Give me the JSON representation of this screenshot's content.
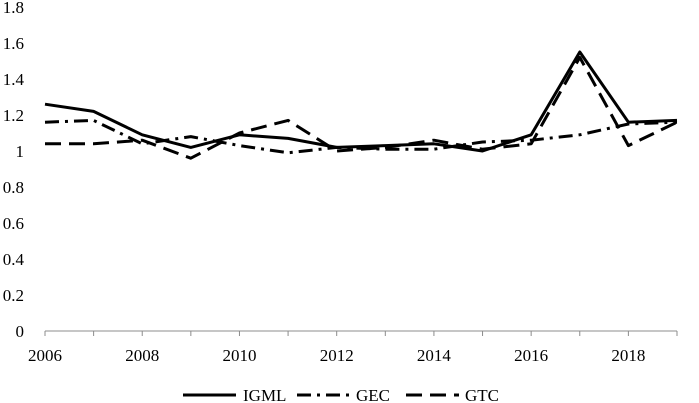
{
  "chart_data": {
    "type": "line",
    "title": "",
    "xlabel": "",
    "ylabel": "",
    "x": [
      2006,
      2007,
      2008,
      2009,
      2010,
      2011,
      2012,
      2013,
      2014,
      2015,
      2016,
      2017,
      2018,
      2019
    ],
    "x_tick_labels": [
      "2006",
      "2008",
      "2010",
      "2012",
      "2014",
      "2016",
      "2018"
    ],
    "y_tick_labels": [
      "0",
      "0.2",
      "0.4",
      "0.6",
      "0.8",
      "1",
      "1.2",
      "1.4",
      "1.6",
      "1.8"
    ],
    "xlim": [
      2006,
      2019
    ],
    "ylim": [
      0,
      1.8
    ],
    "grid": false,
    "legend_position": "bottom",
    "series": [
      {
        "name": "IGML",
        "style": "solid",
        "color": "#000000",
        "values": [
          1.26,
          1.22,
          1.09,
          1.02,
          1.09,
          1.07,
          1.02,
          1.03,
          1.04,
          1.0,
          1.09,
          1.55,
          1.16,
          1.17
        ]
      },
      {
        "name": "GEC",
        "style": "dash-dot",
        "color": "#000000",
        "values": [
          1.16,
          1.17,
          1.04,
          1.08,
          1.03,
          0.99,
          1.02,
          1.01,
          1.01,
          1.05,
          1.06,
          1.09,
          1.15,
          1.16
        ]
      },
      {
        "name": "GTC",
        "style": "dashed",
        "color": "#000000",
        "values": [
          1.04,
          1.04,
          1.06,
          0.96,
          1.1,
          1.17,
          1.0,
          1.02,
          1.06,
          1.01,
          1.04,
          1.52,
          1.03,
          1.16
        ]
      }
    ]
  }
}
